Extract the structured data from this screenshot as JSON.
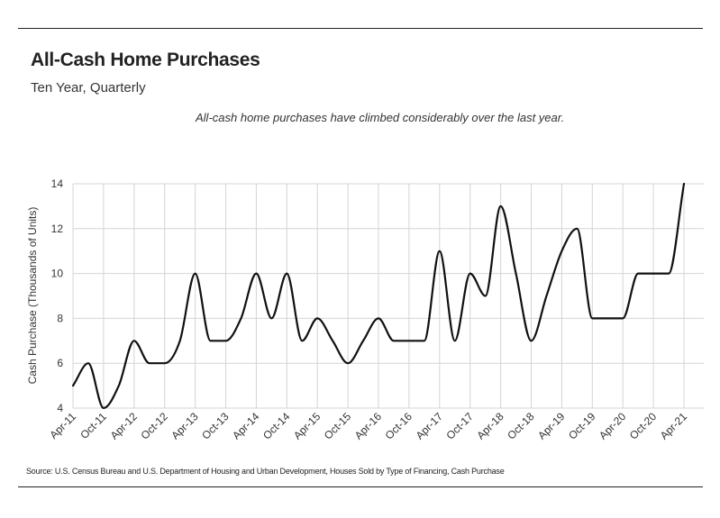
{
  "header": {
    "title": "All-Cash Home Purchases",
    "subtitle": "Ten Year, Quarterly",
    "annotation": "All-cash home purchases have climbed considerably over the last year."
  },
  "footer": {
    "source": "Source:  U.S. Census Bureau and U.S. Department of Housing and Urban Development, Houses Sold by Type of Financing, Cash Purchase"
  },
  "colors": {
    "line": "#111111",
    "grid": "#d4d4d4",
    "rule": "#222222"
  },
  "chart_data": {
    "type": "line",
    "title": "All-Cash Home Purchases",
    "subtitle": "Ten Year, Quarterly",
    "xlabel": "",
    "ylabel": "Cash Purchase (Thousands of Units)",
    "ylim": [
      4,
      14
    ],
    "yticks": [
      4,
      6,
      8,
      10,
      12,
      14
    ],
    "grid": true,
    "legend": "none",
    "x_tick_labels": [
      "Apr-11",
      "Oct-11",
      "Apr-12",
      "Oct-12",
      "Apr-13",
      "Oct-13",
      "Apr-14",
      "Oct-14",
      "Apr-15",
      "Oct-15",
      "Apr-16",
      "Oct-16",
      "Apr-17",
      "Oct-17",
      "Apr-18",
      "Oct-18",
      "Apr-19",
      "Oct-19",
      "Apr-20",
      "Oct-20",
      "Apr-21"
    ],
    "x": [
      "Apr-11",
      "Jul-11",
      "Oct-11",
      "Jan-12",
      "Apr-12",
      "Jul-12",
      "Oct-12",
      "Jan-13",
      "Apr-13",
      "Jul-13",
      "Oct-13",
      "Jan-14",
      "Apr-14",
      "Jul-14",
      "Oct-14",
      "Jan-15",
      "Apr-15",
      "Jul-15",
      "Oct-15",
      "Jan-16",
      "Apr-16",
      "Jul-16",
      "Oct-16",
      "Jan-17",
      "Apr-17",
      "Jul-17",
      "Oct-17",
      "Jan-18",
      "Apr-18",
      "Jul-18",
      "Oct-18",
      "Jan-19",
      "Apr-19",
      "Jul-19",
      "Oct-19",
      "Jan-20",
      "Apr-20",
      "Jul-20",
      "Oct-20",
      "Jan-21",
      "Apr-21"
    ],
    "series": [
      {
        "values": [
          5,
          6,
          4,
          5,
          7,
          6,
          6,
          7,
          10,
          7,
          7,
          8,
          10,
          8,
          10,
          7,
          8,
          7,
          6,
          7,
          8,
          7,
          7,
          7,
          11,
          7,
          10,
          9,
          13,
          10,
          7,
          9,
          11,
          12,
          8,
          8,
          8,
          10,
          10,
          10,
          14
        ]
      }
    ]
  }
}
